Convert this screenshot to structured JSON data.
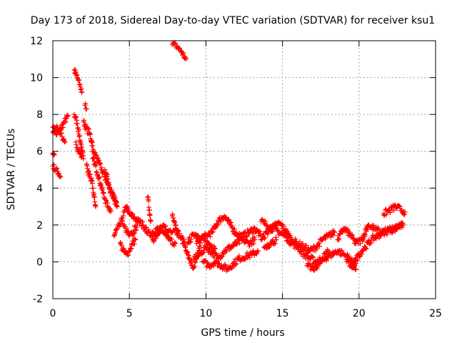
{
  "chart_data": {
    "type": "scatter",
    "title": "Day 173 of 2018, Sidereal Day-to-day VTEC variation (SDTVAR) for receiver ksu1",
    "xlabel": "GPS time / hours",
    "ylabel": "SDTVAR / TECUs",
    "xlim": [
      0,
      25
    ],
    "ylim": [
      -2,
      12
    ],
    "xticks": [
      0,
      5,
      10,
      15,
      20,
      25
    ],
    "xtick_labels": [
      "0",
      "5",
      "10",
      "15",
      "20",
      "25"
    ],
    "yticks": [
      -2,
      0,
      2,
      4,
      6,
      8,
      10,
      12
    ],
    "ytick_labels": [
      "-2",
      "0",
      "2",
      "4",
      "6",
      "8",
      "10",
      "12"
    ],
    "grid": true,
    "marker": "+",
    "color": "#ff0000",
    "series": [
      {
        "name": "ksu1",
        "tracks": [
          [
            [
              0.0,
              7.3
            ],
            [
              0.25,
              6.9
            ],
            [
              0.5,
              7.2
            ],
            [
              0.75,
              7.6
            ],
            [
              1.0,
              7.9
            ]
          ],
          [
            [
              0.0,
              7.0
            ],
            [
              0.3,
              7.3
            ],
            [
              0.6,
              6.8
            ],
            [
              0.8,
              6.5
            ]
          ],
          [
            [
              0.0,
              5.2
            ],
            [
              0.2,
              5.0
            ],
            [
              0.4,
              4.8
            ],
            [
              0.5,
              4.6
            ]
          ],
          [
            [
              0.0,
              5.9
            ],
            [
              0.1,
              5.8
            ]
          ],
          [
            [
              1.4,
              10.4
            ],
            [
              1.6,
              10.0
            ],
            [
              1.8,
              9.5
            ],
            [
              1.9,
              9.2
            ]
          ],
          [
            [
              1.4,
              8.0
            ],
            [
              1.6,
              7.5
            ],
            [
              1.8,
              6.5
            ],
            [
              1.9,
              6.0
            ],
            [
              2.0,
              5.6
            ]
          ],
          [
            [
              1.5,
              6.5
            ],
            [
              1.7,
              6.0
            ],
            [
              1.9,
              5.7
            ]
          ],
          [
            [
              2.1,
              8.5
            ],
            [
              2.2,
              8.3
            ]
          ],
          [
            [
              2.0,
              7.6
            ],
            [
              2.2,
              7.2
            ],
            [
              2.4,
              7.0
            ],
            [
              2.6,
              6.3
            ]
          ],
          [
            [
              2.2,
              5.3
            ],
            [
              2.3,
              4.9
            ],
            [
              2.5,
              4.5
            ],
            [
              2.6,
              4.0
            ],
            [
              2.7,
              3.5
            ],
            [
              2.8,
              3.0
            ]
          ],
          [
            [
              2.6,
              6.0
            ],
            [
              2.8,
              5.8
            ],
            [
              3.0,
              5.4
            ],
            [
              3.2,
              5.0
            ],
            [
              3.4,
              4.6
            ],
            [
              3.6,
              4.2
            ],
            [
              3.8,
              3.8
            ],
            [
              4.0,
              3.4
            ],
            [
              4.2,
              3.0
            ]
          ],
          [
            [
              2.6,
              5.6
            ],
            [
              2.8,
              5.2
            ],
            [
              3.0,
              4.6
            ],
            [
              3.2,
              4.0
            ],
            [
              3.4,
              3.4
            ],
            [
              3.6,
              3.0
            ],
            [
              3.8,
              2.8
            ]
          ],
          [
            [
              3.4,
              5.0
            ],
            [
              3.6,
              4.5
            ],
            [
              3.8,
              3.8
            ],
            [
              4.0,
              3.5
            ],
            [
              4.2,
              3.0
            ]
          ],
          [
            [
              4.0,
              1.4
            ],
            [
              4.2,
              1.8
            ],
            [
              4.4,
              2.0
            ],
            [
              4.6,
              2.5
            ],
            [
              4.8,
              3.0
            ],
            [
              5.0,
              2.6
            ],
            [
              5.3,
              2.4
            ],
            [
              5.6,
              2.2
            ],
            [
              5.9,
              2.0
            ],
            [
              6.2,
              1.6
            ],
            [
              6.5,
              1.5
            ]
          ],
          [
            [
              4.4,
              1.0
            ],
            [
              4.6,
              0.6
            ],
            [
              4.8,
              0.4
            ],
            [
              5.0,
              0.6
            ],
            [
              5.2,
              1.0
            ],
            [
              5.4,
              1.2
            ]
          ],
          [
            [
              4.6,
              2.0
            ],
            [
              4.8,
              1.7
            ],
            [
              5.0,
              1.4
            ],
            [
              5.2,
              1.5
            ],
            [
              5.5,
              2.0
            ]
          ],
          [
            [
              6.2,
              3.5
            ],
            [
              6.3,
              2.8
            ],
            [
              6.4,
              2.2
            ]
          ],
          [
            [
              6.5,
              1.6
            ],
            [
              6.8,
              1.8
            ],
            [
              7.0,
              1.6
            ],
            [
              7.3,
              1.5
            ],
            [
              7.6,
              1.7
            ],
            [
              8.0,
              1.8
            ],
            [
              8.3,
              1.4
            ],
            [
              8.6,
              1.0
            ]
          ],
          [
            [
              6.5,
              1.2
            ],
            [
              6.8,
              1.4
            ],
            [
              7.0,
              1.8
            ],
            [
              7.3,
              1.9
            ],
            [
              7.6,
              1.2
            ],
            [
              8.0,
              1.0
            ]
          ],
          [
            [
              7.8,
              11.8
            ],
            [
              8.1,
              11.7
            ],
            [
              8.4,
              11.4
            ],
            [
              8.7,
              11.0
            ]
          ],
          [
            [
              7.8,
              2.5
            ],
            [
              8.0,
              2.0
            ],
            [
              8.2,
              1.7
            ]
          ],
          [
            [
              8.5,
              1.2
            ],
            [
              8.8,
              0.5
            ],
            [
              9.0,
              0.0
            ],
            [
              9.2,
              -0.3
            ],
            [
              9.4,
              0.2
            ],
            [
              9.6,
              0.8
            ]
          ],
          [
            [
              8.8,
              1.0
            ],
            [
              9.2,
              1.5
            ],
            [
              9.6,
              1.2
            ],
            [
              10.0,
              1.4
            ],
            [
              10.4,
              1.6
            ],
            [
              10.8,
              2.2
            ],
            [
              11.2,
              2.5
            ],
            [
              11.6,
              2.0
            ],
            [
              12.0,
              1.5
            ],
            [
              12.4,
              1.4
            ],
            [
              12.8,
              1.6
            ],
            [
              13.2,
              1.8
            ],
            [
              13.6,
              1.4
            ]
          ],
          [
            [
              9.2,
              0.2
            ],
            [
              9.6,
              0.4
            ],
            [
              10.0,
              0.8
            ],
            [
              10.4,
              0.5
            ],
            [
              10.8,
              0.2
            ],
            [
              11.2,
              0.6
            ],
            [
              11.6,
              0.8
            ],
            [
              12.0,
              1.0
            ],
            [
              12.4,
              1.2
            ],
            [
              12.8,
              1.0
            ],
            [
              13.2,
              1.2
            ]
          ],
          [
            [
              9.8,
              0.0
            ],
            [
              10.2,
              -0.2
            ],
            [
              10.6,
              0.0
            ],
            [
              11.0,
              -0.2
            ],
            [
              11.4,
              -0.4
            ],
            [
              11.8,
              -0.1
            ],
            [
              12.2,
              0.2
            ],
            [
              12.6,
              0.3
            ],
            [
              13.0,
              0.4
            ],
            [
              13.4,
              0.6
            ]
          ],
          [
            [
              9.4,
              1.0
            ],
            [
              9.8,
              1.3
            ],
            [
              10.2,
              1.0
            ],
            [
              10.6,
              0.7
            ]
          ],
          [
            [
              13.6,
              2.2
            ],
            [
              14.0,
              2.0
            ],
            [
              14.4,
              1.8
            ],
            [
              14.8,
              1.6
            ],
            [
              15.2,
              1.4
            ],
            [
              15.6,
              1.0
            ],
            [
              16.0,
              0.8
            ],
            [
              16.4,
              0.4
            ],
            [
              16.8,
              0.2
            ],
            [
              17.2,
              0.0
            ],
            [
              17.6,
              0.2
            ],
            [
              18.0,
              0.6
            ]
          ],
          [
            [
              13.6,
              1.2
            ],
            [
              14.0,
              1.6
            ],
            [
              14.4,
              1.9
            ],
            [
              14.8,
              2.1
            ],
            [
              15.2,
              1.7
            ],
            [
              15.6,
              1.2
            ],
            [
              16.0,
              1.0
            ],
            [
              16.4,
              0.8
            ],
            [
              16.8,
              0.6
            ],
            [
              17.2,
              0.8
            ],
            [
              17.6,
              1.2
            ],
            [
              18.0,
              1.4
            ],
            [
              18.4,
              1.6
            ]
          ],
          [
            [
              13.8,
              0.8
            ],
            [
              14.2,
              1.0
            ],
            [
              14.6,
              1.2
            ]
          ],
          [
            [
              16.6,
              -0.2
            ],
            [
              17.0,
              -0.4
            ],
            [
              17.4,
              -0.1
            ],
            [
              17.8,
              0.2
            ],
            [
              18.2,
              0.4
            ],
            [
              18.6,
              0.6
            ],
            [
              19.0,
              0.4
            ],
            [
              19.4,
              0.2
            ],
            [
              19.8,
              -0.4
            ]
          ],
          [
            [
              18.6,
              1.2
            ],
            [
              19.0,
              1.8
            ],
            [
              19.4,
              1.5
            ],
            [
              19.8,
              1.0
            ],
            [
              20.2,
              1.2
            ],
            [
              20.6,
              2.0
            ],
            [
              21.0,
              1.8
            ],
            [
              21.4,
              1.6
            ],
            [
              21.8,
              1.7
            ],
            [
              22.2,
              1.8
            ],
            [
              22.6,
              1.9
            ],
            [
              22.9,
              2.0
            ]
          ],
          [
            [
              19.6,
              -0.2
            ],
            [
              20.0,
              0.4
            ],
            [
              20.4,
              0.8
            ],
            [
              20.8,
              1.2
            ],
            [
              21.2,
              1.4
            ],
            [
              21.6,
              1.6
            ],
            [
              22.0,
              1.7
            ],
            [
              22.4,
              1.8
            ],
            [
              22.8,
              2.1
            ]
          ],
          [
            [
              21.6,
              2.6
            ],
            [
              22.0,
              2.8
            ],
            [
              22.4,
              3.0
            ],
            [
              22.8,
              2.8
            ],
            [
              23.0,
              2.7
            ]
          ],
          [
            [
              19.2,
              0.0
            ],
            [
              19.5,
              -0.3
            ],
            [
              19.8,
              0.1
            ]
          ]
        ]
      }
    ]
  }
}
